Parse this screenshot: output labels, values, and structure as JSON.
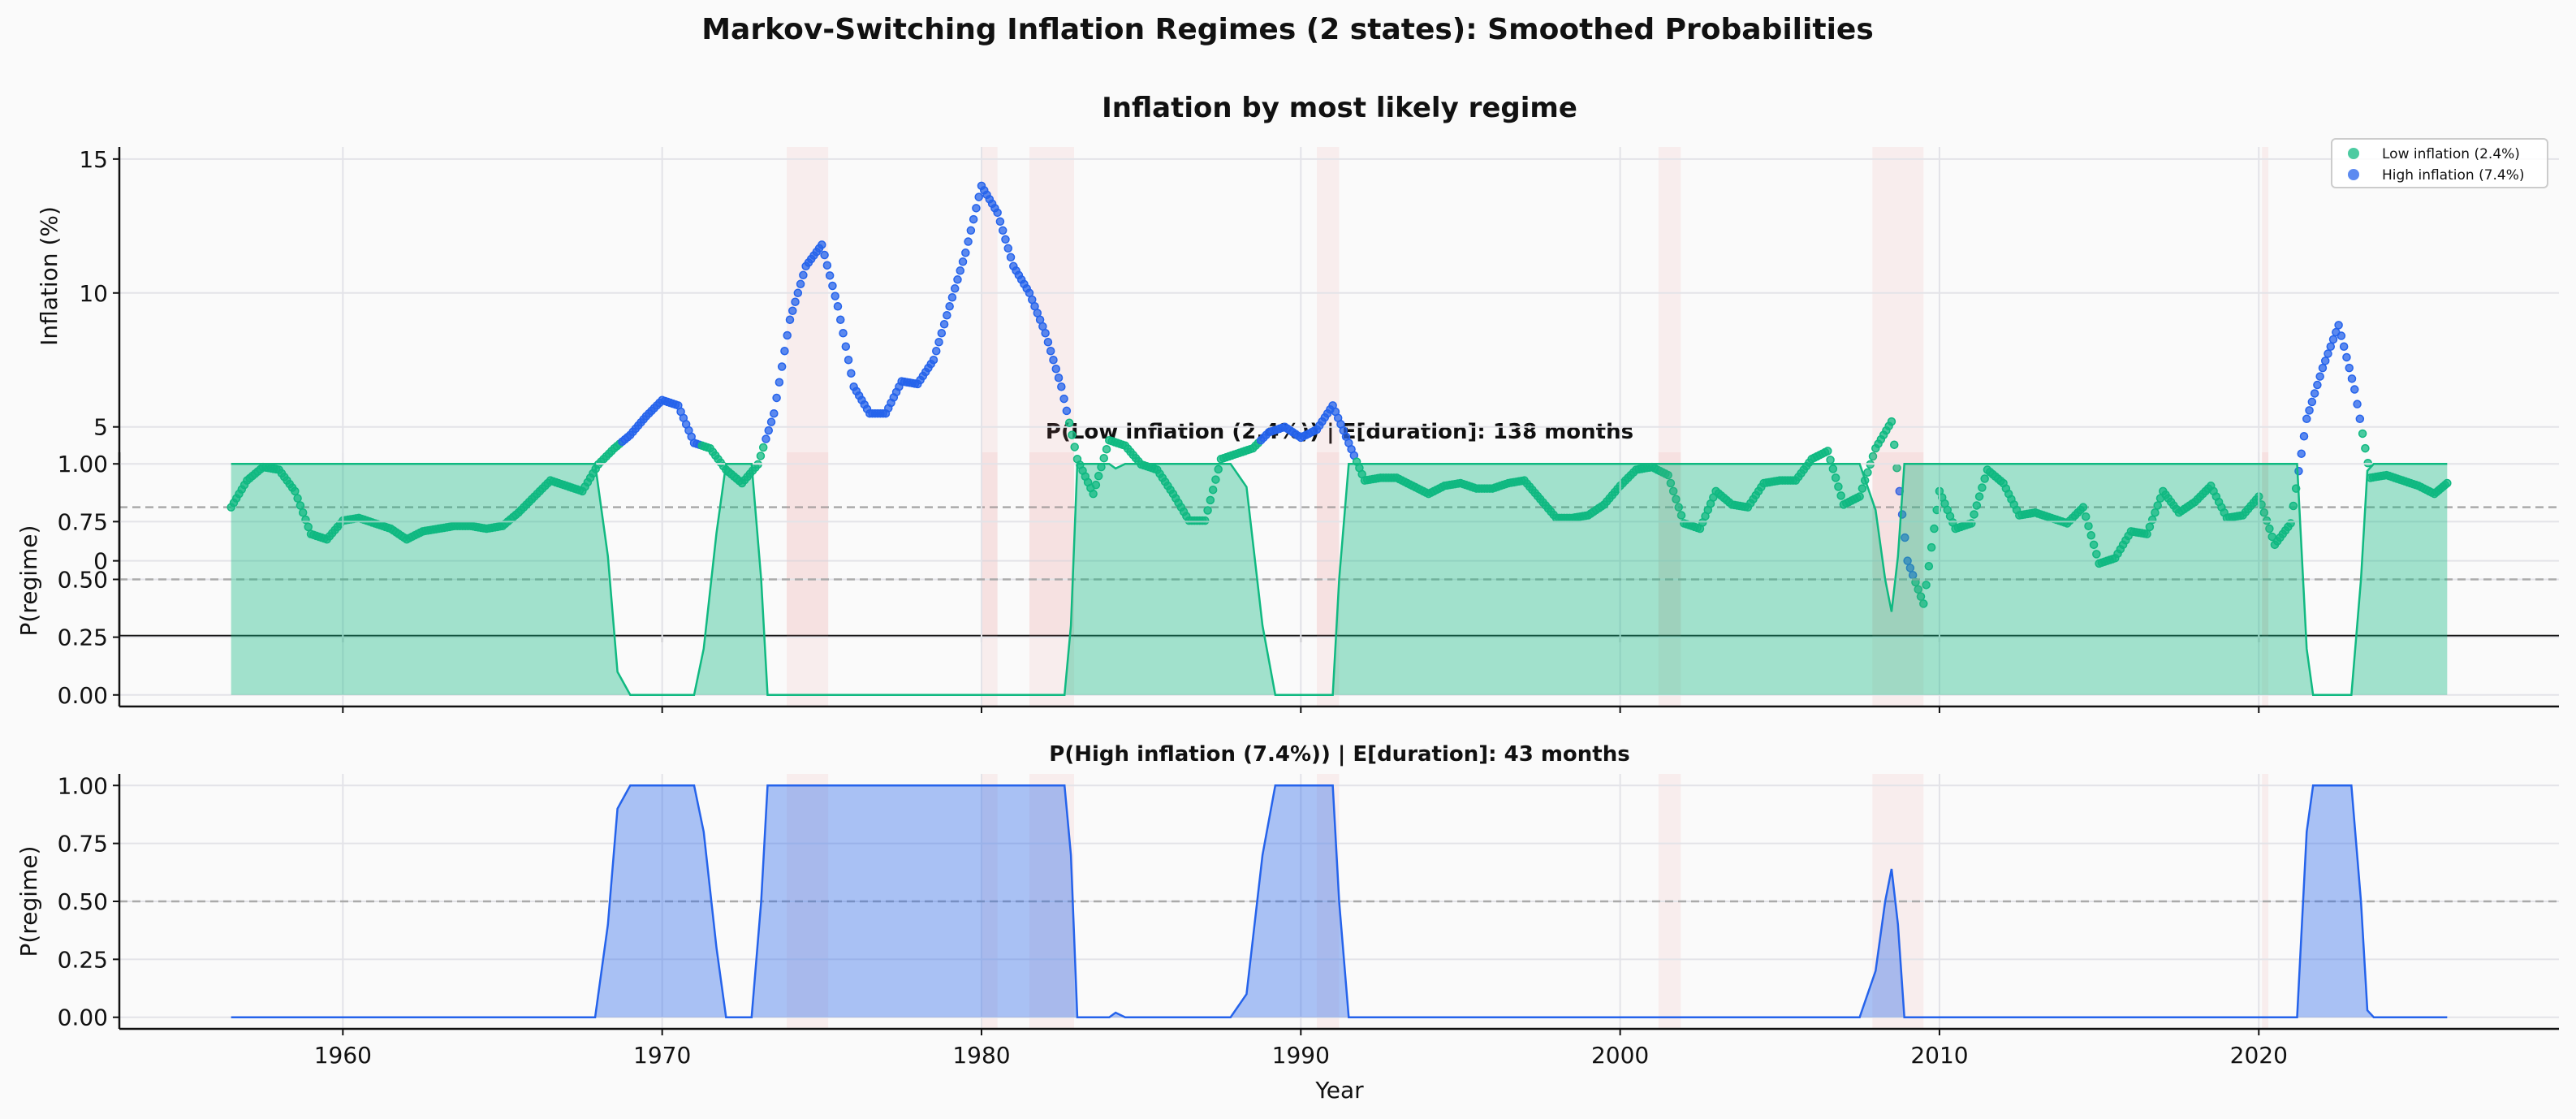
{
  "title": "Markov-Switching Inflation Regimes (2 states): Smoothed Probabilities",
  "colors": {
    "low": "#10b981",
    "high": "#2563eb",
    "recession": "#f08080",
    "reference_line": "#aaaaaa"
  },
  "chart_data": [
    {
      "type": "scatter",
      "title": "Inflation by most likely regime",
      "xlabel": "",
      "ylabel": "Inflation (%)",
      "xlim": [
        1953,
        2029.4
      ],
      "ylim": [
        -2.8,
        15.45
      ],
      "yticks": [
        0,
        5,
        10,
        15
      ],
      "grid": true,
      "reference_line": 2,
      "legend": {
        "placement": "top-right",
        "entries": [
          "Low inflation (2.4%)",
          "High inflation (7.4%)"
        ]
      },
      "recessions": [
        [
          1973.9,
          1975.2
        ],
        [
          1980.0,
          1980.5
        ],
        [
          1981.5,
          1982.9
        ],
        [
          1990.5,
          1991.2
        ],
        [
          2001.2,
          2001.9
        ],
        [
          2007.9,
          2009.5
        ],
        [
          2020.1,
          2020.3
        ]
      ],
      "x": [
        1956.5,
        1957,
        1957.5,
        1958,
        1958.5,
        1959,
        1959.5,
        1960,
        1960.5,
        1961,
        1961.5,
        1962,
        1962.5,
        1963,
        1963.5,
        1964,
        1964.5,
        1965,
        1965.5,
        1966,
        1966.5,
        1967,
        1967.5,
        1968,
        1968.5,
        1969,
        1969.5,
        1970,
        1970.5,
        1971,
        1971.5,
        1972,
        1972.5,
        1973,
        1973.5,
        1974,
        1974.5,
        1975,
        1975.5,
        1976,
        1976.5,
        1977,
        1977.5,
        1978,
        1978.5,
        1979,
        1979.5,
        1980,
        1980.5,
        1981,
        1981.5,
        1982,
        1982.5,
        1983,
        1983.5,
        1984,
        1984.5,
        1985,
        1985.5,
        1986,
        1986.5,
        1987,
        1987.5,
        1988,
        1988.5,
        1989,
        1989.5,
        1990,
        1990.5,
        1991,
        1991.5,
        1992,
        1992.5,
        1993,
        1993.5,
        1994,
        1994.5,
        1995,
        1995.5,
        1996,
        1996.5,
        1997,
        1997.5,
        1998,
        1998.5,
        1999,
        1999.5,
        2000,
        2000.5,
        2001,
        2001.5,
        2002,
        2002.5,
        2003,
        2003.5,
        2004,
        2004.5,
        2005,
        2005.5,
        2006,
        2006.5,
        2007,
        2007.5,
        2008,
        2008.5,
        2009,
        2009.5,
        2010,
        2010.5,
        2011,
        2011.5,
        2012,
        2012.5,
        2013,
        2013.5,
        2014,
        2014.5,
        2015,
        2015.5,
        2016,
        2016.5,
        2017,
        2017.5,
        2018,
        2018.5,
        2019,
        2019.5,
        2020,
        2020.5,
        2021,
        2021.5,
        2022,
        2022.5,
        2023,
        2023.5,
        2024,
        2024.5,
        2025,
        2025.5,
        2025.9
      ],
      "y": [
        2.0,
        3.0,
        3.5,
        3.4,
        2.6,
        1.0,
        0.8,
        1.5,
        1.6,
        1.4,
        1.2,
        0.8,
        1.1,
        1.2,
        1.3,
        1.3,
        1.2,
        1.3,
        1.8,
        2.4,
        3.0,
        2.8,
        2.6,
        3.6,
        4.2,
        4.7,
        5.4,
        6.0,
        5.8,
        4.4,
        4.2,
        3.4,
        2.9,
        3.6,
        5.5,
        9.0,
        11.0,
        11.8,
        9.5,
        6.5,
        5.5,
        5.5,
        6.7,
        6.6,
        7.5,
        9.5,
        11.5,
        14.0,
        13.0,
        11.0,
        10.0,
        8.5,
        6.5,
        3.8,
        2.5,
        4.5,
        4.3,
        3.6,
        3.4,
        2.5,
        1.5,
        1.5,
        3.8,
        4.0,
        4.2,
        4.8,
        5.0,
        4.6,
        4.9,
        5.8,
        4.4,
        3.0,
        3.1,
        3.1,
        2.8,
        2.5,
        2.8,
        2.9,
        2.7,
        2.7,
        2.9,
        3.0,
        2.3,
        1.6,
        1.6,
        1.7,
        2.1,
        2.8,
        3.4,
        3.5,
        3.2,
        1.4,
        1.2,
        2.6,
        2.1,
        2.0,
        2.9,
        3.0,
        3.0,
        3.8,
        4.1,
        2.1,
        2.4,
        4.2,
        5.2,
        0.0,
        -1.6,
        2.6,
        1.2,
        1.4,
        3.4,
        2.9,
        1.7,
        1.8,
        1.6,
        1.4,
        2.0,
        -0.1,
        0.1,
        1.1,
        1.0,
        2.6,
        1.8,
        2.2,
        2.8,
        1.6,
        1.7,
        2.4,
        0.6,
        1.4,
        5.3,
        7.2,
        8.8,
        6.4,
        3.1,
        3.2,
        3.0,
        2.8,
        2.5,
        2.9
      ],
      "regime": "LLLLLLLLLLLLLLLLLLLLLLLLLHHHHHLLLLHHHHHHHHHHHHHHHHHHHLLLLLLLLLLLLHHHHHHLLLLLLLLLLLLLLLLLLLLLLLLLLLLLLLLLLHLLLLLLLLLLLLLLLLLLLLLLLLHHHHLLLLLL"
    },
    {
      "type": "area",
      "title": "P(Low inflation (2.4%)) | E[duration]: 138 months",
      "ylabel": "P(regime)",
      "xlim": [
        1953,
        2029.4
      ],
      "ylim": [
        -0.05,
        1.05
      ],
      "yticks": [
        "0.00",
        "0.25",
        "0.50",
        "0.75",
        "1.00"
      ],
      "reference_line": 0.5,
      "x": [
        1956.5,
        1967.9,
        1968.3,
        1968.6,
        1969.0,
        1971.0,
        1971.3,
        1971.7,
        1972.0,
        1972.8,
        1973.1,
        1973.3,
        1982.6,
        1982.8,
        1983.0,
        1984.0,
        1984.2,
        1984.5,
        1987.8,
        1988.3,
        1988.8,
        1989.2,
        1991.0,
        1991.2,
        1991.5,
        2007.5,
        2008.0,
        2008.3,
        2008.5,
        2008.7,
        2008.9,
        2021.2,
        2021.5,
        2021.7,
        2022.9,
        2023.2,
        2023.4,
        2023.6,
        2025.9
      ],
      "values": [
        1,
        1,
        0.6,
        0.1,
        0,
        0,
        0.2,
        0.7,
        1,
        1,
        0.5,
        0,
        0,
        0.3,
        1,
        1,
        0.98,
        1,
        1,
        0.9,
        0.3,
        0,
        0,
        0.5,
        1,
        1,
        0.8,
        0.5,
        0.36,
        0.6,
        1,
        1,
        0.2,
        0,
        0,
        0.5,
        0.97,
        1,
        1
      ]
    },
    {
      "type": "area",
      "title": "P(High inflation (7.4%)) | E[duration]: 43 months",
      "xlabel": "Year",
      "ylabel": "P(regime)",
      "xlim": [
        1953,
        2029.4
      ],
      "ylim": [
        -0.05,
        1.05
      ],
      "yticks": [
        "0.00",
        "0.25",
        "0.50",
        "0.75",
        "1.00"
      ],
      "xticks": [
        "1960",
        "1970",
        "1980",
        "1990",
        "2000",
        "2010",
        "2020"
      ],
      "reference_line": 0.5,
      "x": [
        1956.5,
        1967.9,
        1968.3,
        1968.6,
        1969.0,
        1971.0,
        1971.3,
        1971.7,
        1972.0,
        1972.8,
        1973.1,
        1973.3,
        1982.6,
        1982.8,
        1983.0,
        1984.0,
        1984.2,
        1984.5,
        1987.8,
        1988.3,
        1988.8,
        1989.2,
        1991.0,
        1991.2,
        1991.5,
        2007.5,
        2008.0,
        2008.3,
        2008.5,
        2008.7,
        2008.9,
        2021.2,
        2021.5,
        2021.7,
        2022.9,
        2023.2,
        2023.4,
        2023.6,
        2025.9
      ],
      "values": [
        0,
        0,
        0.4,
        0.9,
        1,
        1,
        0.8,
        0.3,
        0,
        0,
        0.5,
        1,
        1,
        0.7,
        0,
        0,
        0.02,
        0,
        0,
        0.1,
        0.7,
        1,
        1,
        0.5,
        0,
        0,
        0.2,
        0.5,
        0.64,
        0.4,
        0,
        0,
        0.8,
        1,
        1,
        0.5,
        0.03,
        0,
        0
      ]
    }
  ]
}
